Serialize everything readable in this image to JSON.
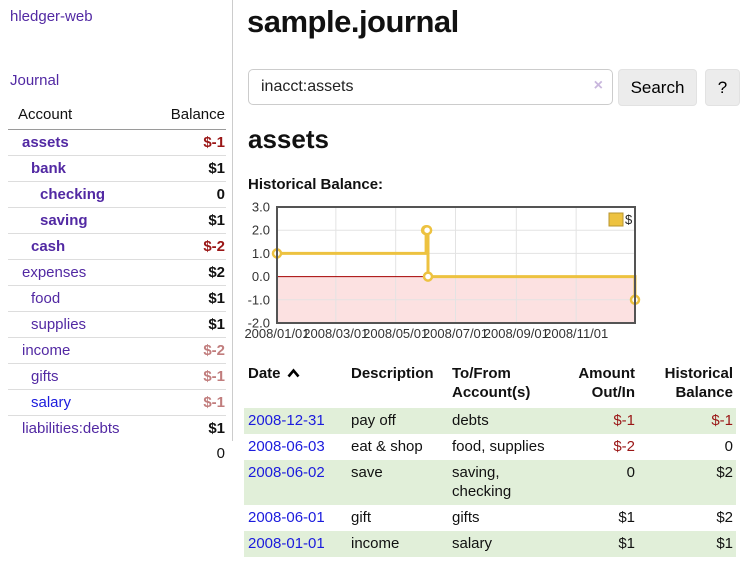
{
  "sidebar": {
    "brand": "hledger-web",
    "journal_link": "Journal",
    "accounts_table": {
      "headers": {
        "account": "Account",
        "balance": "Balance"
      },
      "rows": [
        {
          "label": "assets",
          "level": 1,
          "bold": true,
          "balance": "$-1",
          "balance_class": "neg"
        },
        {
          "label": "bank",
          "level": 2,
          "bold": true,
          "balance": "$1",
          "balance_class": ""
        },
        {
          "label": "checking",
          "level": 3,
          "bold": true,
          "balance": "0",
          "balance_class": ""
        },
        {
          "label": "saving",
          "level": 3,
          "bold": true,
          "balance": "$1",
          "balance_class": ""
        },
        {
          "label": "cash",
          "level": 2,
          "bold": true,
          "balance": "$-2",
          "balance_class": "neg"
        },
        {
          "label": "expenses",
          "level": 1,
          "bold": false,
          "balance": "$2",
          "balance_class": ""
        },
        {
          "label": "food",
          "level": 2,
          "bold": false,
          "balance": "$1",
          "balance_class": ""
        },
        {
          "label": "supplies",
          "level": 2,
          "bold": false,
          "balance": "$1",
          "balance_class": ""
        },
        {
          "label": "income",
          "level": 1,
          "bold": false,
          "balance": "$-2",
          "balance_class": "negl"
        },
        {
          "label": "gifts",
          "level": 2,
          "bold": false,
          "balance": "$-1",
          "balance_class": "negl"
        },
        {
          "label": "salary",
          "level": 2,
          "bold": false,
          "balance": "$-1",
          "balance_class": "negl",
          "link_class": "blue"
        },
        {
          "label": "liabilities:debts",
          "level": 1,
          "bold": false,
          "balance": "$1",
          "balance_class": ""
        }
      ],
      "total": "0"
    }
  },
  "header": {
    "title": "sample.journal"
  },
  "search": {
    "value": "inacct:assets",
    "clear_icon": "×",
    "search_button": "Search",
    "help_button": "?"
  },
  "account_page": {
    "heading": "assets",
    "chart_label": "Historical Balance:"
  },
  "chart_data": {
    "type": "line",
    "step": true,
    "series": [
      {
        "name": "$",
        "color": "#edc240",
        "points": [
          [
            "2008-01-01",
            1
          ],
          [
            "2008-06-01",
            2
          ],
          [
            "2008-06-02",
            2
          ],
          [
            "2008-06-03",
            0
          ],
          [
            "2008-12-31",
            -1
          ]
        ]
      }
    ],
    "xlim": [
      "2008-01-01",
      "2008-12-31"
    ],
    "ylim": [
      -2,
      3
    ],
    "x_ticks": [
      "2008/01/01",
      "2008/03/01",
      "2008/05/01",
      "2008/07/01",
      "2008/09/01",
      "2008/11/01"
    ],
    "y_ticks": [
      "3.0",
      "2.0",
      "1.0",
      "0.0",
      "-1.0",
      "-2.0"
    ],
    "grid": true,
    "legend_position": "top-right",
    "negative_region_color": "#fce1e1",
    "zero_line_color": "#a40000",
    "border_color": "#545454",
    "grid_color": "#e3e3e3"
  },
  "register_table": {
    "headers": {
      "date": "Date",
      "description": "Description",
      "accounts": "To/From Account(s)",
      "amount": "Amount Out/In",
      "balance": "Historical Balance"
    },
    "rows": [
      {
        "date": "2008-12-31",
        "description": "pay off",
        "accounts": "debts",
        "amount": "$-1",
        "amount_class": "neg",
        "balance": "$-1",
        "balance_class": "neg"
      },
      {
        "date": "2008-06-03",
        "description": "eat & shop",
        "accounts": "food, supplies",
        "amount": "$-2",
        "amount_class": "neg",
        "balance": "0",
        "balance_class": ""
      },
      {
        "date": "2008-06-02",
        "description": "save",
        "accounts": "saving, checking",
        "amount": "0",
        "amount_class": "",
        "balance": "$2",
        "balance_class": ""
      },
      {
        "date": "2008-06-01",
        "description": "gift",
        "accounts": "gifts",
        "amount": "$1",
        "amount_class": "",
        "balance": "$2",
        "balance_class": ""
      },
      {
        "date": "2008-01-01",
        "description": "income",
        "accounts": "salary",
        "amount": "$1",
        "amount_class": "",
        "balance": "$1",
        "balance_class": ""
      }
    ]
  },
  "colors": {
    "purple_link": "#5229a3",
    "blue_link": "#1b1bdd",
    "negative": "#9a1616",
    "negative_muted": "#c17d7d",
    "row_stripe_green": "#e1efd9",
    "series_gold": "#edc240",
    "button_bg": "#ececec"
  }
}
